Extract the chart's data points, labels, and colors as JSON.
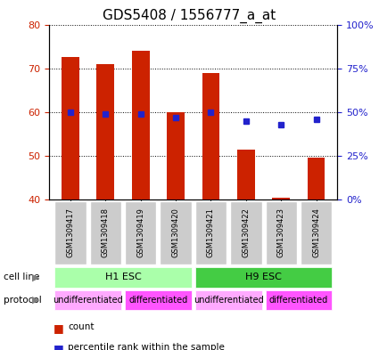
{
  "title": "GDS5408 / 1556777_a_at",
  "samples": [
    "GSM1309417",
    "GSM1309418",
    "GSM1309419",
    "GSM1309420",
    "GSM1309421",
    "GSM1309422",
    "GSM1309423",
    "GSM1309424"
  ],
  "counts": [
    72.5,
    71.0,
    74.0,
    60.0,
    69.0,
    51.5,
    40.5,
    49.5
  ],
  "percentiles": [
    50,
    49,
    49,
    47,
    50,
    45,
    43,
    46
  ],
  "ylim_left": [
    40,
    80
  ],
  "ylim_right": [
    0,
    100
  ],
  "yticks_left": [
    40,
    50,
    60,
    70,
    80
  ],
  "yticks_right": [
    0,
    25,
    50,
    75,
    100
  ],
  "ytick_labels_right": [
    "0%",
    "25%",
    "50%",
    "75%",
    "100%"
  ],
  "bar_color": "#cc2200",
  "dot_color": "#2222cc",
  "bar_width": 0.5,
  "cell_line_groups": [
    {
      "label": "H1 ESC",
      "start": 0,
      "end": 3,
      "color": "#aaffaa"
    },
    {
      "label": "H9 ESC",
      "start": 4,
      "end": 7,
      "color": "#44cc44"
    }
  ],
  "protocol_groups": [
    {
      "label": "undifferentiated",
      "start": 0,
      "end": 1,
      "color": "#ffaaff"
    },
    {
      "label": "differentiated",
      "start": 2,
      "end": 3,
      "color": "#ff55ff"
    },
    {
      "label": "undifferentiated",
      "start": 4,
      "end": 5,
      "color": "#ffaaff"
    },
    {
      "label": "differentiated",
      "start": 6,
      "end": 7,
      "color": "#ff55ff"
    }
  ],
  "cell_line_label": "cell line",
  "protocol_label": "protocol",
  "legend_count_label": "count",
  "legend_percentile_label": "percentile rank within the sample",
  "sample_box_color": "#cccccc",
  "title_fontsize": 11,
  "ylabel_left_color": "#cc2200",
  "ylabel_right_color": "#2222cc"
}
